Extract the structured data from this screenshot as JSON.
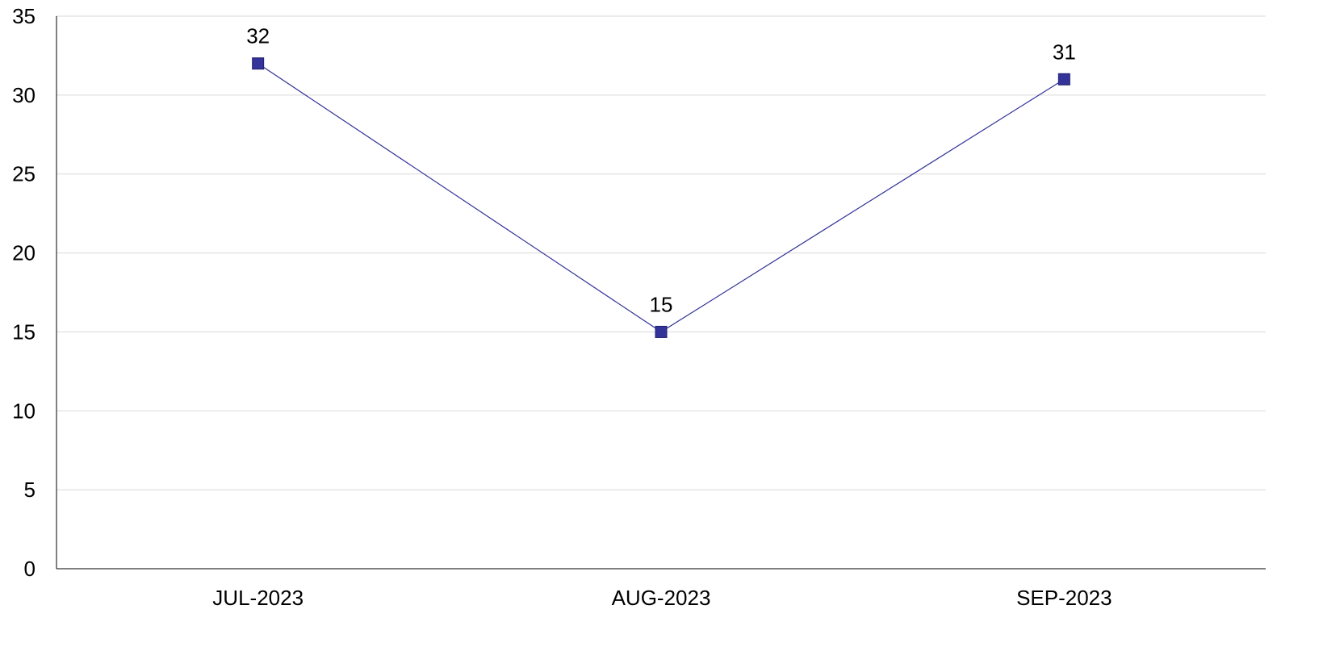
{
  "chart_data": {
    "type": "line",
    "title": "",
    "xlabel": "",
    "ylabel": "",
    "categories": [
      "JUL-2023",
      "AUG-2023",
      "SEP-2023"
    ],
    "series": [
      {
        "values": [
          32,
          15,
          31
        ],
        "color": "#333399",
        "marker": "square"
      }
    ],
    "ylim": [
      0,
      35
    ],
    "yticks": [
      "0",
      "5",
      "10",
      "15",
      "20",
      "25",
      "30",
      "35"
    ],
    "grid": true,
    "grid_color": "#d9d9d9",
    "axis_color": "#000000",
    "data_labels": [
      "32",
      "15",
      "31"
    ],
    "legend": "none"
  }
}
